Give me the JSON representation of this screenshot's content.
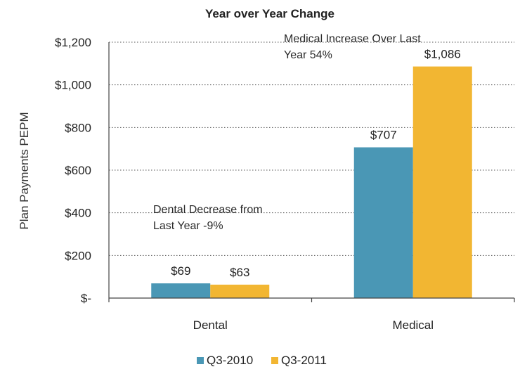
{
  "chart_data": {
    "type": "bar",
    "title": "Year over Year Change",
    "xlabel": "",
    "ylabel": "Plan Payments PEPM",
    "ylim": [
      0,
      1200
    ],
    "yticks": [
      {
        "value": 0,
        "label": "$-"
      },
      {
        "value": 200,
        "label": "$200"
      },
      {
        "value": 400,
        "label": "$400"
      },
      {
        "value": 600,
        "label": "$600"
      },
      {
        "value": 800,
        "label": "$800"
      },
      {
        "value": 1000,
        "label": "$1,000"
      },
      {
        "value": 1200,
        "label": "$1,200"
      }
    ],
    "grid": "dotted horizontal",
    "categories": [
      "Dental",
      "Medical"
    ],
    "series": [
      {
        "name": "Q3-2010",
        "color": "#4a97b5",
        "values": [
          69,
          707
        ],
        "labels": [
          "$69",
          "$707"
        ]
      },
      {
        "name": "Q3-2011",
        "color": "#f2b632",
        "values": [
          63,
          1086
        ],
        "labels": [
          "$63",
          "$1,086"
        ]
      }
    ],
    "annotations": [
      {
        "category": "Dental",
        "lines": [
          "Dental Decrease from",
          "Last Year -9%"
        ]
      },
      {
        "category": "Medical",
        "lines": [
          "Medical Increase Over Last",
          "Year 54%"
        ]
      }
    ],
    "legend_position": "bottom"
  }
}
